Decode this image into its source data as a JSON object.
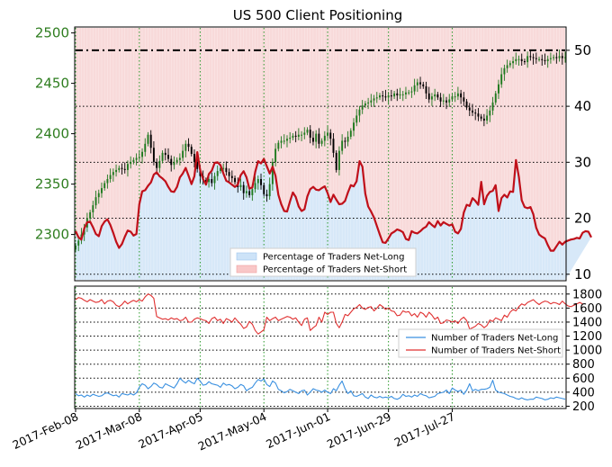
{
  "colors": {
    "candle_green": "#1f7a1f",
    "candle_black": "#000000",
    "net_short_line": "#c0101a",
    "net_long_area": "#d7e8f8",
    "net_short_area": "#f8dada",
    "count_long_line": "#3a90e0",
    "count_short_line": "#e03030",
    "green_tick_text": "#2e7d1f",
    "grid_green": "#2a9a2a"
  },
  "chart_data": [
    {
      "type": "candlestick+area",
      "title": "US 500 Client Positioning",
      "left_axis": {
        "ticks": [
          2300,
          2350,
          2400,
          2450,
          2500
        ],
        "range": [
          2255,
          2505
        ]
      },
      "right_axis": {
        "ticks": [
          10,
          20,
          30,
          40,
          50
        ],
        "range": [
          9,
          54
        ]
      },
      "ratio_reference_line": 50,
      "legend": {
        "placement": "bottom-center",
        "entries": [
          "Percentage of Traders Net-Long",
          "Percentage of Traders Net-Short"
        ]
      },
      "price_close": [
        2289,
        2294,
        2300,
        2307,
        2316,
        2322,
        2329,
        2337,
        2341,
        2346,
        2351,
        2355,
        2359,
        2362,
        2364,
        2366,
        2365,
        2364,
        2370,
        2372,
        2374,
        2376,
        2377,
        2382,
        2390,
        2399,
        2386,
        2372,
        2366,
        2373,
        2381,
        2379,
        2375,
        2369,
        2372,
        2374,
        2376,
        2383,
        2390,
        2387,
        2380,
        2372,
        2365,
        2358,
        2354,
        2352,
        2355,
        2351,
        2358,
        2363,
        2366,
        2366,
        2362,
        2358,
        2356,
        2352,
        2347,
        2349,
        2341,
        2343,
        2339,
        2345,
        2351,
        2355,
        2349,
        2340,
        2338,
        2350,
        2372,
        2385,
        2391,
        2393,
        2393,
        2395,
        2396,
        2398,
        2397,
        2399,
        2399,
        2401,
        2404,
        2396,
        2392,
        2400,
        2390,
        2393,
        2398,
        2401,
        2395,
        2381,
        2364,
        2383,
        2393,
        2392,
        2397,
        2403,
        2411,
        2418,
        2424,
        2428,
        2430,
        2431,
        2433,
        2435,
        2436,
        2438,
        2437,
        2436,
        2438,
        2437,
        2440,
        2438,
        2439,
        2439,
        2441,
        2441,
        2442,
        2448,
        2451,
        2449,
        2447,
        2440,
        2434,
        2437,
        2439,
        2436,
        2432,
        2433,
        2431,
        2434,
        2437,
        2437,
        2440,
        2436,
        2432,
        2426,
        2423,
        2421,
        2420,
        2417,
        2415,
        2413,
        2418,
        2423,
        2431,
        2440,
        2449,
        2459,
        2465,
        2468,
        2470,
        2472,
        2474,
        2474,
        2472,
        2471,
        2477,
        2476,
        2475,
        2474,
        2474,
        2473,
        2472,
        2474,
        2475,
        2476,
        2475,
        2477,
        2475,
        2476
      ],
      "net_short_pct": [
        17.7,
        16.6,
        16.2,
        18.2,
        19.3,
        19.4,
        18.4,
        17.2,
        16.8,
        18.6,
        19.4,
        19.8,
        18.8,
        17.4,
        15.8,
        14.7,
        15.4,
        16.7,
        17.8,
        17.6,
        16.9,
        17.2,
        22.5,
        24.8,
        25.0,
        25.8,
        26.4,
        27.8,
        28.2,
        27.5,
        27.1,
        26.6,
        25.6,
        24.8,
        24.7,
        25.6,
        27.3,
        28.0,
        29.0,
        27.6,
        26.1,
        27.5,
        31.8,
        28.6,
        27.0,
        26.0,
        27.9,
        28.5,
        29.9,
        30.0,
        29.5,
        28.0,
        26.7,
        26.4,
        26.0,
        25.6,
        26.0,
        27.7,
        28.4,
        27.3,
        25.3,
        25.5,
        28.3,
        30.2,
        29.8,
        30.6,
        29.3,
        28.0,
        29.2,
        27.6,
        24.2,
        22.5,
        21.3,
        21.2,
        23.0,
        24.6,
        23.8,
        22.1,
        21.3,
        21.6,
        23.9,
        25.2,
        25.6,
        25.1,
        25.0,
        25.4,
        25.7,
        24.5,
        22.9,
        24.2,
        23.3,
        22.5,
        22.6,
        23.1,
        24.6,
        25.9,
        25.7,
        26.6,
        30.2,
        29.2,
        24.4,
        22.1,
        21.2,
        20.1,
        18.6,
        17.1,
        15.7,
        15.6,
        16.4,
        17.3,
        17.6,
        18.0,
        17.8,
        17.5,
        16.3,
        16.1,
        17.7,
        17.4,
        17.3,
        17.7,
        18.2,
        18.5,
        19.3,
        18.8,
        18.4,
        19.5,
        18.7,
        19.3,
        19.0,
        18.7,
        18.9,
        17.6,
        17.3,
        18.1,
        21.0,
        22.4,
        22.2,
        23.6,
        23.1,
        22.4,
        26.5,
        22.5,
        24.0,
        24.7,
        24.9,
        25.9,
        21.3,
        23.6,
        24.2,
        23.7,
        24.8,
        24.7,
        30.4,
        27.4,
        23.2,
        22.0,
        21.8,
        22.0,
        20.7,
        18.3,
        17.1,
        16.7,
        16.4,
        15.2,
        14.2,
        14.2,
        15.0,
        15.8,
        15.3,
        15.8,
        16.0,
        16.2,
        16.3,
        16.5,
        16.4,
        17.4,
        17.7,
        17.6,
        16.6
      ]
    },
    {
      "type": "line",
      "y_ticks": [
        200,
        400,
        600,
        800,
        1000,
        1200,
        1400,
        1600,
        1800
      ],
      "y_range": [
        180,
        1900
      ],
      "legend": {
        "placement": "center-right",
        "entries": [
          "Number of Traders Net-Long",
          "Number of Traders Net-Short"
        ]
      },
      "series": [
        {
          "name": "Number of Traders Net-Long",
          "values": [
            380,
            350,
            360,
            330,
            360,
            340,
            370,
            355,
            340,
            350,
            380,
            390,
            370,
            350,
            360,
            330,
            380,
            370,
            360,
            380,
            360,
            390,
            470,
            520,
            500,
            450,
            480,
            530,
            510,
            470,
            460,
            520,
            500,
            480,
            460,
            520,
            600,
            560,
            530,
            570,
            540,
            520,
            600,
            560,
            500,
            510,
            550,
            520,
            510,
            500,
            470,
            530,
            500,
            510,
            490,
            450,
            470,
            510,
            490,
            420,
            450,
            470,
            530,
            580,
            560,
            590,
            510,
            480,
            560,
            530,
            440,
            420,
            390,
            410,
            440,
            420,
            400,
            380,
            420,
            430,
            360,
            400,
            450,
            430,
            420,
            400,
            430,
            400,
            380,
            450,
            420,
            500,
            560,
            450,
            380,
            420,
            350,
            340,
            360,
            380,
            330,
            310,
            360,
            330,
            320,
            340,
            320,
            330,
            320,
            340,
            310,
            300,
            320,
            370,
            340,
            350,
            330,
            360,
            340,
            380,
            360,
            350,
            320,
            330,
            340,
            380,
            390,
            400,
            430,
            380,
            460,
            430,
            410,
            430,
            370,
            430,
            520,
            420,
            440,
            420,
            440,
            440,
            450,
            470,
            570,
            430,
            400,
            390,
            380,
            360,
            340,
            330,
            310,
            300,
            320,
            300,
            290,
            300,
            300,
            330,
            320,
            310,
            290,
            300,
            320,
            310,
            330,
            320,
            310,
            300
          ]
        },
        {
          "name": "Number of Traders Net-Short",
          "values": [
            1720,
            1750,
            1740,
            1710,
            1690,
            1720,
            1700,
            1680,
            1690,
            1720,
            1660,
            1700,
            1710,
            1690,
            1640,
            1620,
            1650,
            1700,
            1660,
            1690,
            1710,
            1690,
            1720,
            1700,
            1760,
            1800,
            1780,
            1740,
            1480,
            1460,
            1440,
            1450,
            1430,
            1460,
            1440,
            1450,
            1420,
            1430,
            1470,
            1400,
            1400,
            1440,
            1460,
            1450,
            1430,
            1420,
            1380,
            1450,
            1470,
            1420,
            1440,
            1380,
            1450,
            1430,
            1400,
            1460,
            1410,
            1370,
            1310,
            1330,
            1410,
            1370,
            1280,
            1230,
            1260,
            1290,
            1470,
            1420,
            1450,
            1470,
            1420,
            1440,
            1460,
            1480,
            1470,
            1440,
            1460,
            1400,
            1350,
            1440,
            1460,
            1280,
            1320,
            1350,
            1470,
            1400,
            1540,
            1510,
            1540,
            1540,
            1380,
            1320,
            1400,
            1510,
            1490,
            1540,
            1590,
            1610,
            1650,
            1600,
            1580,
            1610,
            1620,
            1560,
            1600,
            1650,
            1620,
            1580,
            1600,
            1560,
            1550,
            1490,
            1500,
            1560,
            1540,
            1550,
            1490,
            1520,
            1470,
            1540,
            1520,
            1470,
            1540,
            1500,
            1440,
            1470,
            1380,
            1390,
            1430,
            1420,
            1400,
            1420,
            1380,
            1440,
            1470,
            1420,
            1300,
            1320,
            1340,
            1380,
            1360,
            1320,
            1350,
            1430,
            1410,
            1460,
            1440,
            1420,
            1500,
            1470,
            1540,
            1580,
            1560,
            1620,
            1660,
            1640,
            1680,
            1700,
            1720,
            1680,
            1650,
            1680,
            1700,
            1690,
            1660,
            1680,
            1670,
            1650,
            1700,
            1660,
            1630,
            1620,
            1640,
            1660,
            1680,
            1660
          ]
        }
      ]
    }
  ],
  "x_axis": {
    "tick_labels": [
      "2017-Feb-08",
      "2017-Mar-08",
      "2017-Apr-05",
      "2017-May-04",
      "2017-Jun-01",
      "2017-Jun-29",
      "2017-Jul-27"
    ]
  }
}
